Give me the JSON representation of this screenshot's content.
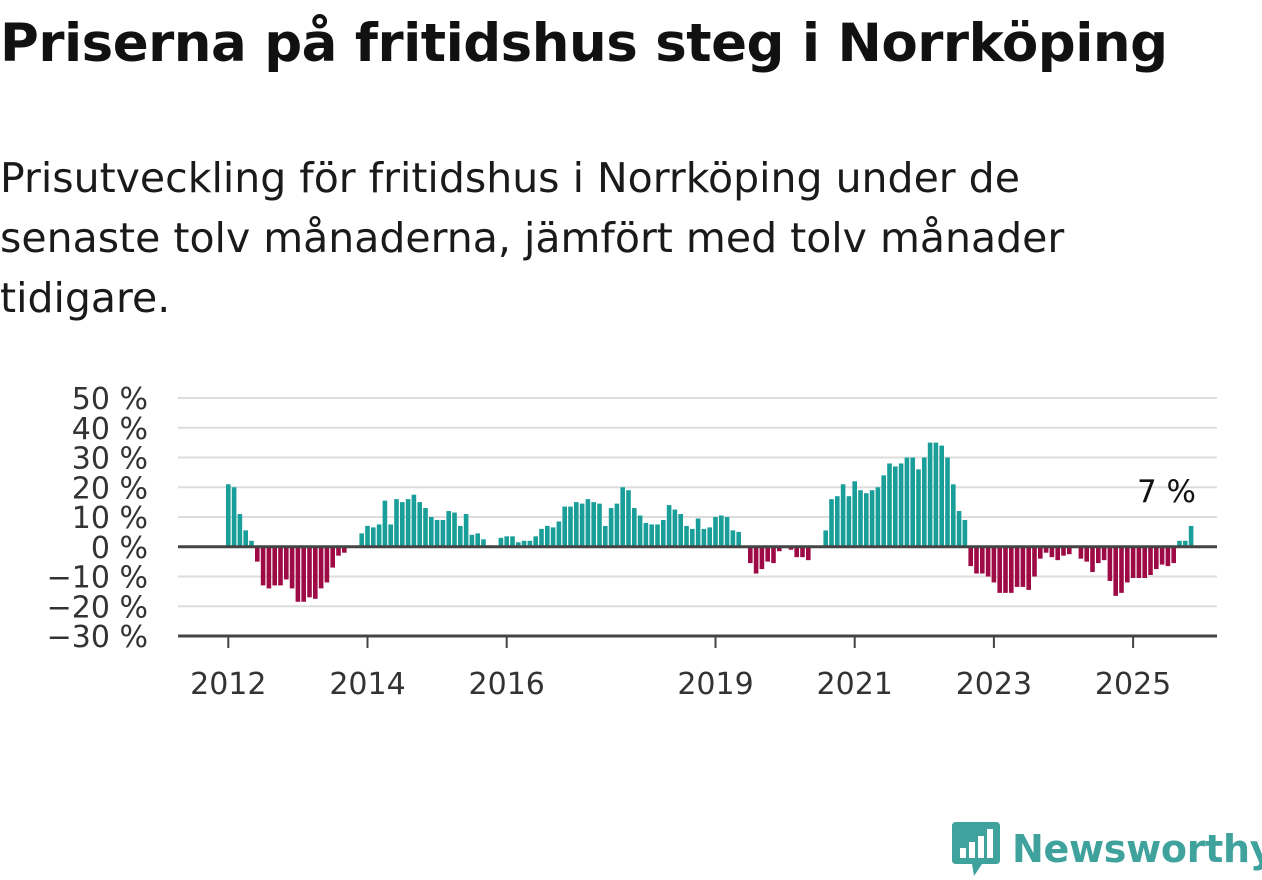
{
  "title": "Priserna på fritidshus steg i Norrköping",
  "subtitle": "Prisutveckling för fritidshus i Norrköping under de senaste tolv månaderna, jämfört med tolv månader tidigare.",
  "brand": {
    "name": "Newsworthy",
    "logo_icon": "newsworthy-bar-chart-icon",
    "color": "#40a29c"
  },
  "chart_data": {
    "type": "bar",
    "ylim": [
      -30,
      50
    ],
    "ytick_values": [
      50,
      40,
      30,
      20,
      10,
      0,
      -10,
      -20,
      -30
    ],
    "ytick_labels": [
      "50 %",
      "40 %",
      "30 %",
      "20 %",
      "10 %",
      "0 %",
      "−10 %",
      "−20 %",
      "−30 %"
    ],
    "xticks": [
      {
        "label": "2012",
        "index": 0
      },
      {
        "label": "2014",
        "index": 24
      },
      {
        "label": "2016",
        "index": 48
      },
      {
        "label": "2019",
        "index": 84
      },
      {
        "label": "2021",
        "index": 108
      },
      {
        "label": "2023",
        "index": 132
      },
      {
        "label": "2025",
        "index": 156
      }
    ],
    "colors": {
      "positive": "#1a9e99",
      "negative": "#9e0a45",
      "grid": "#dddddd",
      "zero_line": "#444444",
      "axis_text": "#333333"
    },
    "grid": true,
    "last_value_label": "7 %",
    "values": [
      21,
      20,
      11,
      5.5,
      2,
      -5,
      -13,
      -14,
      -13,
      -13,
      -11,
      -14,
      -18.5,
      -18.5,
      -17,
      -17.5,
      -14,
      -12,
      -7,
      -3,
      -2,
      0,
      0,
      4.5,
      7,
      6.5,
      7.5,
      15.5,
      7.5,
      16,
      15,
      16,
      17.5,
      15,
      13,
      10,
      9,
      9,
      12,
      11.5,
      7,
      11,
      4,
      4.5,
      2.5,
      0.5,
      0,
      3,
      3.5,
      3.5,
      1.5,
      2,
      2,
      3.5,
      6,
      7,
      6.5,
      8.5,
      13.5,
      13.5,
      15,
      14.5,
      16,
      15,
      14.5,
      7,
      13,
      14.5,
      20,
      19,
      13,
      10.5,
      8,
      7.5,
      7.5,
      9,
      14,
      12.5,
      11,
      7,
      6,
      9.5,
      6,
      6.5,
      10,
      10.5,
      10,
      5.5,
      5,
      0,
      -5.5,
      -9,
      -7.5,
      -5,
      -5.5,
      -1.5,
      0,
      -1,
      -3.5,
      -3.5,
      -4.5,
      0,
      0,
      5.5,
      16,
      17,
      21,
      17,
      22,
      19,
      18,
      19,
      20,
      24,
      28,
      27,
      28,
      30,
      30,
      26,
      30,
      35,
      35,
      34,
      30,
      21,
      12,
      9,
      -6.5,
      -9,
      -9,
      -10,
      -12,
      -15.5,
      -15.5,
      -15.5,
      -13.5,
      -13.5,
      -14.5,
      -10,
      -4,
      -2,
      -3.5,
      -4.5,
      -3,
      -2.5,
      0,
      -4,
      -5,
      -8.5,
      -5.5,
      -4.5,
      -11.5,
      -16.5,
      -15.5,
      -12,
      -10.5,
      -10.5,
      -10.5,
      -9.5,
      -7.5,
      -6,
      -6.5,
      -5.5,
      2,
      2,
      7
    ]
  }
}
